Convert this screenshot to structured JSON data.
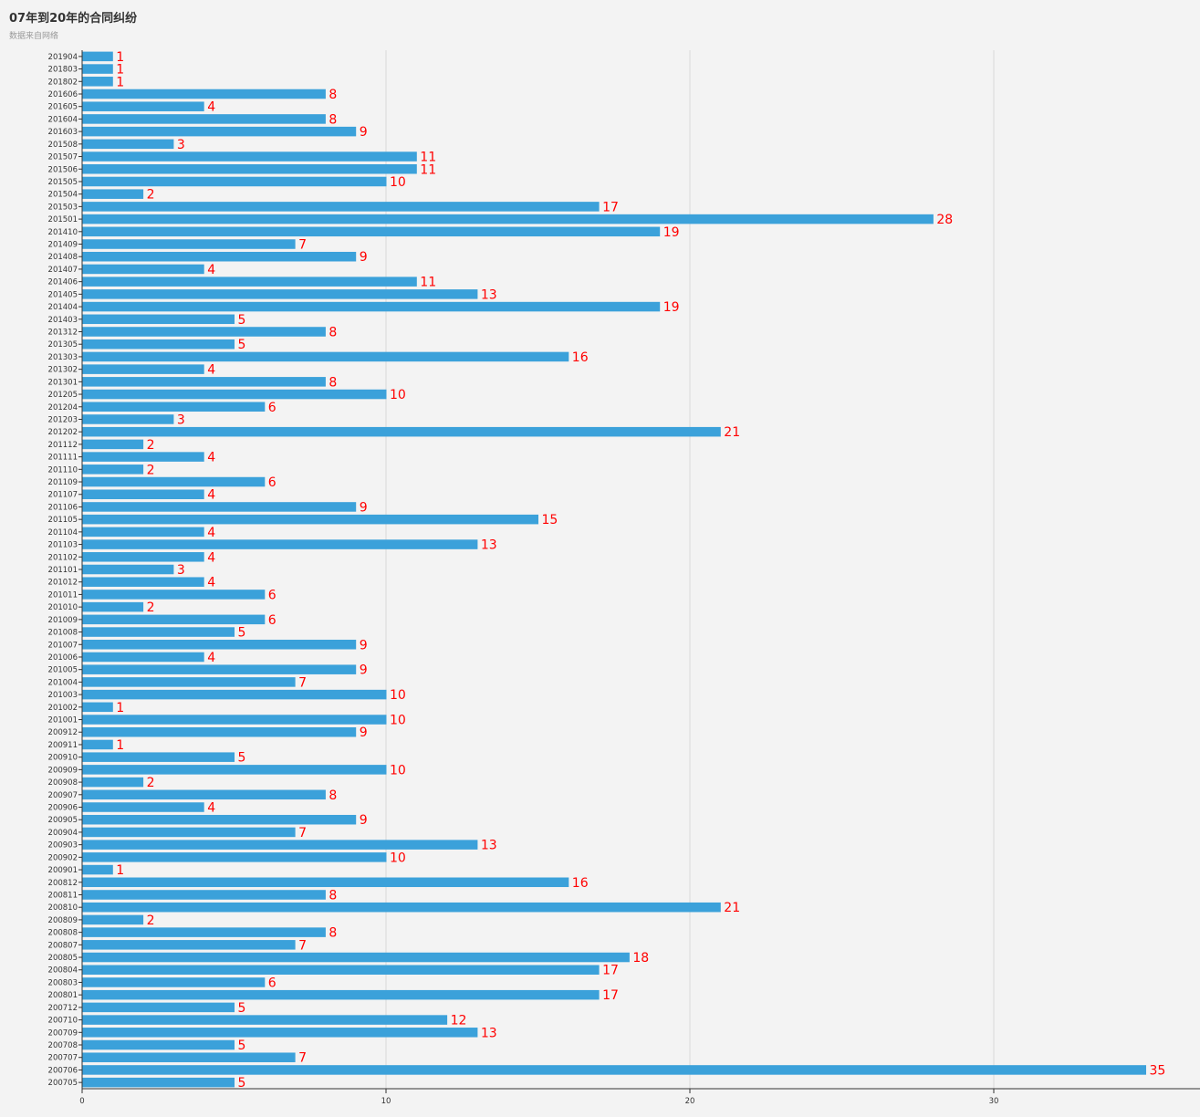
{
  "chart_data": {
    "type": "bar",
    "orientation": "horizontal",
    "title": "07年到20年的合同纠纷",
    "subtitle": "数据来自网络",
    "categories": [
      "201904",
      "201803",
      "201802",
      "201606",
      "201605",
      "201604",
      "201603",
      "201508",
      "201507",
      "201506",
      "201505",
      "201504",
      "201503",
      "201501",
      "201410",
      "201409",
      "201408",
      "201407",
      "201406",
      "201405",
      "201404",
      "201403",
      "201312",
      "201305",
      "201303",
      "201302",
      "201301",
      "201205",
      "201204",
      "201203",
      "201202",
      "201112",
      "201111",
      "201110",
      "201109",
      "201107",
      "201106",
      "201105",
      "201104",
      "201103",
      "201102",
      "201101",
      "201012",
      "201011",
      "201010",
      "201009",
      "201008",
      "201007",
      "201006",
      "201005",
      "201004",
      "201003",
      "201002",
      "201001",
      "200912",
      "200911",
      "200910",
      "200909",
      "200908",
      "200907",
      "200906",
      "200905",
      "200904",
      "200903",
      "200902",
      "200901",
      "200812",
      "200811",
      "200810",
      "200809",
      "200808",
      "200807",
      "200805",
      "200804",
      "200803",
      "200801",
      "200712",
      "200710",
      "200709",
      "200708",
      "200707",
      "200706",
      "200705"
    ],
    "values": [
      1,
      1,
      1,
      8,
      4,
      8,
      9,
      3,
      11,
      11,
      10,
      2,
      17,
      28,
      19,
      7,
      9,
      4,
      11,
      13,
      19,
      5,
      8,
      5,
      16,
      4,
      8,
      10,
      6,
      3,
      21,
      2,
      4,
      2,
      6,
      4,
      9,
      15,
      4,
      13,
      4,
      3,
      4,
      6,
      2,
      6,
      5,
      9,
      4,
      9,
      7,
      10,
      1,
      10,
      9,
      1,
      5,
      10,
      2,
      8,
      4,
      9,
      7,
      13,
      10,
      1,
      16,
      8,
      21,
      2,
      8,
      7,
      18,
      17,
      6,
      17,
      5,
      12,
      13,
      5,
      7,
      35,
      5
    ],
    "xlim": [
      0,
      37
    ],
    "x_ticks": [
      "0",
      "10",
      "20",
      "30"
    ],
    "grid": true,
    "colors": {
      "bar": "#3ba1da",
      "label": "#ff0000",
      "grid": "#d8d8d8",
      "axis": "#333333"
    }
  }
}
